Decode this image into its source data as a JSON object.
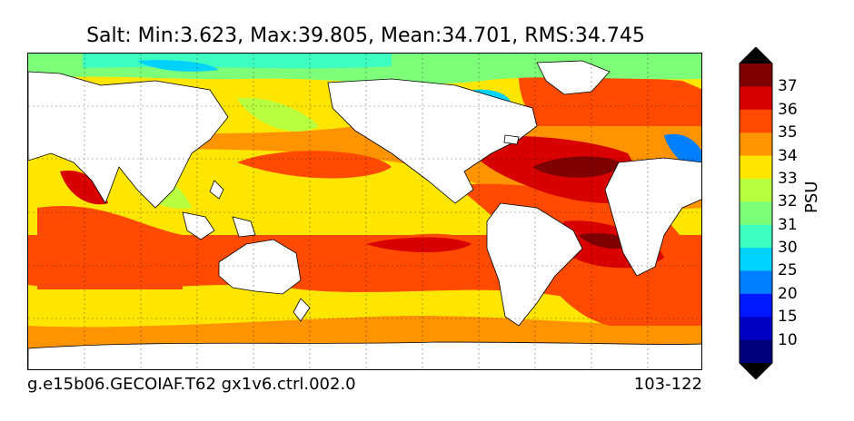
{
  "title": "Salt: Min:3.623, Max:39.805, Mean:34.701, RMS:34.745",
  "caption_left": "g.e15b06.GECOIAF.T62 gx1v6.ctrl.002.0",
  "caption_right": "103-122",
  "colorbar": {
    "label": "PSU",
    "ticks": [
      "37",
      "36",
      "35",
      "34",
      "33",
      "32",
      "31",
      "30",
      "25",
      "20",
      "15",
      "10"
    ],
    "colors": [
      "#7f0000",
      "#d90000",
      "#ff4a00",
      "#ff9400",
      "#ffe600",
      "#b8ff40",
      "#7dff7a",
      "#3dffc0",
      "#00d2ff",
      "#0080ff",
      "#0018ff",
      "#0000c4",
      "#00007c"
    ]
  }
}
